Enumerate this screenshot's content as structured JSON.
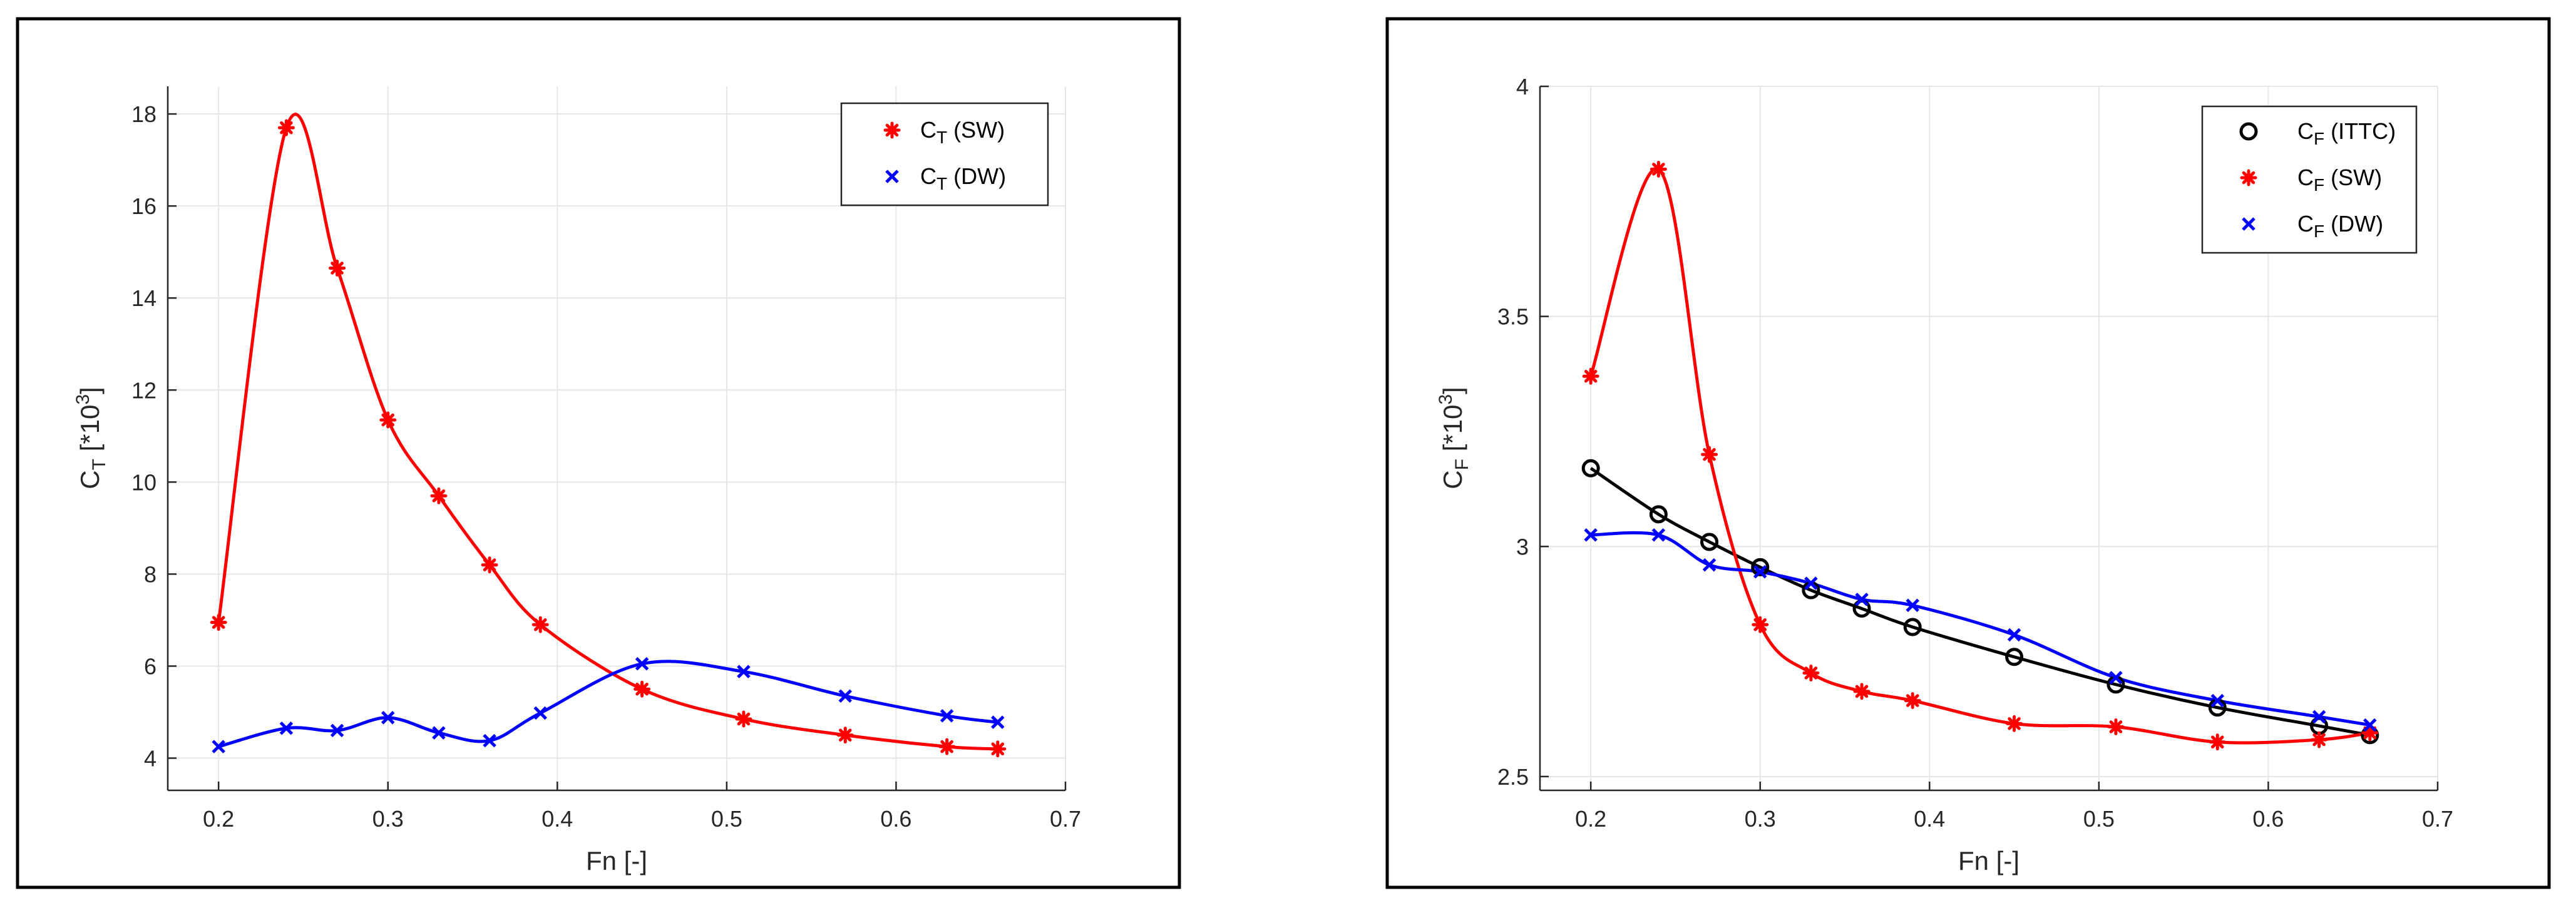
{
  "colors": {
    "sw": "#ff0000",
    "dw": "#0000ff",
    "ittc": "#000000",
    "grid": "#e6e6e6",
    "axis": "#262626"
  },
  "chart_data": [
    {
      "type": "line",
      "ylabel": {
        "main": "C",
        "sub": "T",
        "mid": " [*10",
        "sup": "3",
        "end": "]"
      },
      "xlabel": "Fn [-]",
      "xlim": [
        0.17,
        0.7
      ],
      "ylim": [
        3.3,
        18.6
      ],
      "xticks": [
        0.2,
        0.3,
        0.4,
        0.5,
        0.6,
        0.7
      ],
      "xtick_labels": [
        "0.2",
        "0.3",
        "0.4",
        "0.5",
        "0.6",
        "0.7"
      ],
      "yticks": [
        4,
        6,
        8,
        10,
        12,
        14,
        16,
        18
      ],
      "ytick_labels": [
        "4",
        "6",
        "8",
        "10",
        "12",
        "14",
        "16",
        "18"
      ],
      "grid": true,
      "legend_position": "top-right",
      "series": [
        {
          "name": "CT (SW)",
          "legend_main": "C",
          "legend_sub": "T",
          "legend_rest": " (SW)",
          "marker": "asterisk",
          "color": "#ff0000",
          "x": [
            0.2,
            0.24,
            0.27,
            0.3,
            0.33,
            0.36,
            0.39,
            0.45,
            0.51,
            0.57,
            0.63,
            0.66
          ],
          "y": [
            6.95,
            17.7,
            14.65,
            11.35,
            9.7,
            8.2,
            6.9,
            5.5,
            4.85,
            4.5,
            4.25,
            4.2
          ]
        },
        {
          "name": "CT (DW)",
          "legend_main": "C",
          "legend_sub": "T",
          "legend_rest": " (DW)",
          "marker": "x",
          "color": "#0000ff",
          "x": [
            0.2,
            0.24,
            0.27,
            0.3,
            0.33,
            0.36,
            0.39,
            0.45,
            0.51,
            0.57,
            0.63,
            0.66
          ],
          "y": [
            4.25,
            4.65,
            4.6,
            4.88,
            4.55,
            4.38,
            4.98,
            6.05,
            5.88,
            5.35,
            4.92,
            4.78
          ]
        }
      ]
    },
    {
      "type": "line",
      "ylabel": {
        "main": "C",
        "sub": "F",
        "mid": " [*10",
        "sup": "3",
        "end": "]"
      },
      "xlabel": "Fn [-]",
      "xlim": [
        0.17,
        0.7
      ],
      "ylim": [
        2.47,
        4.0
      ],
      "xticks": [
        0.2,
        0.3,
        0.4,
        0.5,
        0.6,
        0.7
      ],
      "xtick_labels": [
        "0.2",
        "0.3",
        "0.4",
        "0.5",
        "0.6",
        "0.7"
      ],
      "yticks": [
        2.5,
        3.0,
        3.5,
        4.0
      ],
      "ytick_labels": [
        "2.5",
        "3",
        "3.5",
        "4"
      ],
      "grid": true,
      "legend_position": "top-right",
      "series": [
        {
          "name": "CF (ITTC)",
          "legend_main": "C",
          "legend_sub": "F",
          "legend_rest": " (ITTC)",
          "marker": "circle",
          "color": "#000000",
          "x": [
            0.2,
            0.24,
            0.27,
            0.3,
            0.33,
            0.36,
            0.39,
            0.45,
            0.51,
            0.57,
            0.63,
            0.66
          ],
          "y": [
            3.17,
            3.07,
            3.01,
            2.955,
            2.905,
            2.865,
            2.825,
            2.76,
            2.7,
            2.65,
            2.61,
            2.59
          ]
        },
        {
          "name": "CF (SW)",
          "legend_main": "C",
          "legend_sub": "F",
          "legend_rest": " (SW)",
          "marker": "asterisk",
          "color": "#ff0000",
          "x": [
            0.2,
            0.24,
            0.27,
            0.3,
            0.33,
            0.36,
            0.39,
            0.45,
            0.51,
            0.57,
            0.63,
            0.66
          ],
          "y": [
            3.37,
            3.82,
            3.2,
            2.83,
            2.725,
            2.685,
            2.665,
            2.615,
            2.608,
            2.575,
            2.58,
            2.595
          ]
        },
        {
          "name": "CF (DW)",
          "legend_main": "C",
          "legend_sub": "F",
          "legend_rest": " (DW)",
          "marker": "x",
          "color": "#0000ff",
          "x": [
            0.2,
            0.24,
            0.27,
            0.3,
            0.33,
            0.36,
            0.39,
            0.45,
            0.51,
            0.57,
            0.63,
            0.66
          ],
          "y": [
            3.025,
            3.025,
            2.96,
            2.945,
            2.92,
            2.885,
            2.872,
            2.808,
            2.715,
            2.665,
            2.63,
            2.612
          ]
        }
      ]
    }
  ]
}
